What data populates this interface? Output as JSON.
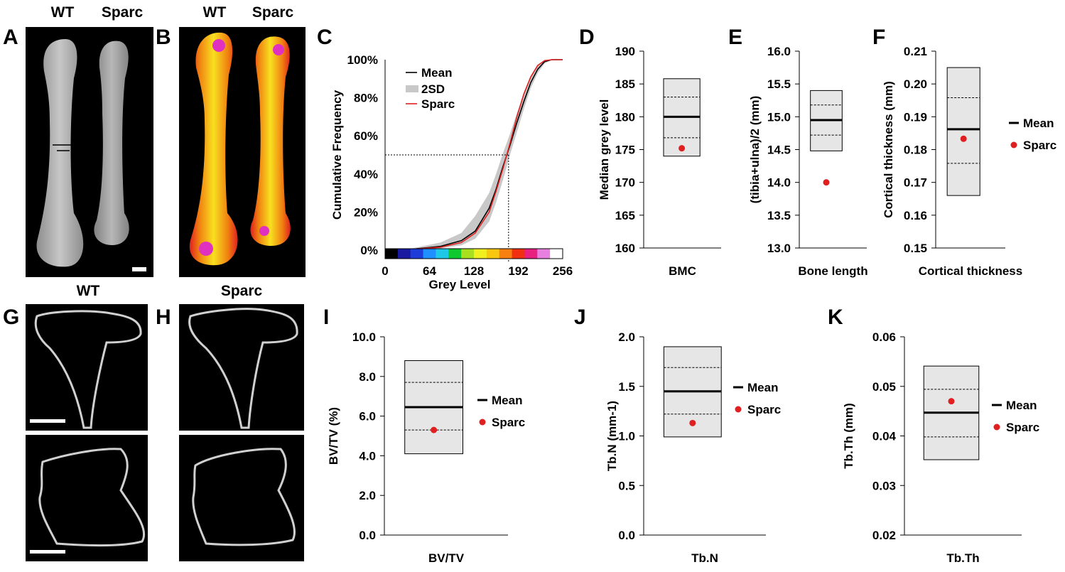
{
  "panel_labels": {
    "A": "A",
    "B": "B",
    "C": "C",
    "D": "D",
    "E": "E",
    "F": "F",
    "G": "G",
    "H": "H",
    "I": "I",
    "J": "J",
    "K": "K"
  },
  "image_titles": {
    "a_wt": "WT",
    "a_sparc": "Sparc",
    "b_wt": "WT",
    "b_sparc": "Sparc",
    "g_wt": "WT",
    "h_sparc": "Sparc"
  },
  "colors": {
    "wt_mean": "#000000",
    "sparc": "#e02020",
    "sd_band": "#c8c8c8",
    "box_fill": "#e6e6e6"
  },
  "chart_data": [
    {
      "id": "C",
      "type": "line",
      "xlabel": "Grey Level",
      "ylabel": "Cumulative Frequency",
      "xlim": [
        0,
        256
      ],
      "ylim": [
        0,
        100
      ],
      "xticks": [
        "0",
        "64",
        "128",
        "192",
        "256"
      ],
      "yticks": [
        "0%",
        "20%",
        "40%",
        "60%",
        "80%",
        "100%"
      ],
      "legend": [
        "Mean",
        "2SD",
        "Sparc"
      ],
      "colorbar": [
        "#000000",
        "#1a1aa0",
        "#1e3cd8",
        "#1e90ff",
        "#20c8e8",
        "#10c830",
        "#a8e020",
        "#f0f020",
        "#f8c810",
        "#f88010",
        "#f03010",
        "#e82080",
        "#e880e0",
        "#ffffff"
      ],
      "series": [
        {
          "name": "Mean",
          "x": [
            0,
            40,
            80,
            110,
            130,
            150,
            160,
            170,
            180,
            190,
            200,
            210,
            220,
            230,
            240,
            256
          ],
          "y": [
            0,
            0.5,
            2,
            5,
            10,
            22,
            32,
            44,
            55,
            67,
            78,
            88,
            95,
            99,
            100,
            100
          ]
        },
        {
          "name": "Sparc",
          "x": [
            0,
            40,
            80,
            110,
            130,
            150,
            160,
            170,
            180,
            190,
            200,
            210,
            220,
            230,
            240,
            256
          ],
          "y": [
            0,
            0.5,
            1.5,
            4,
            9,
            20,
            31,
            43,
            56,
            70,
            82,
            91,
            97,
            99.5,
            100,
            100
          ]
        }
      ],
      "band_2sd": {
        "x": [
          0,
          40,
          80,
          110,
          130,
          150,
          160,
          170,
          180,
          190,
          200,
          210,
          220,
          230,
          240,
          256
        ],
        "lower": [
          0,
          0.2,
          1,
          2.5,
          6,
          15,
          25,
          37,
          50,
          62,
          74,
          85,
          93,
          98,
          100,
          100
        ],
        "upper": [
          0,
          1,
          4,
          9,
          18,
          30,
          40,
          51,
          61,
          72,
          82,
          91,
          97,
          100,
          100,
          100
        ]
      },
      "reference": {
        "x": 178,
        "y": 50
      }
    },
    {
      "id": "D",
      "type": "box",
      "xlabel": "BMC",
      "ylabel": "Median grey level",
      "ylim": [
        160,
        190
      ],
      "yticks": [
        "160",
        "165",
        "170",
        "175",
        "180",
        "185",
        "190"
      ],
      "box": {
        "low": 174,
        "high": 185.8,
        "mean": 180,
        "sd_low": 176.8,
        "sd_high": 183
      },
      "sparc": 175.2,
      "legend": []
    },
    {
      "id": "E",
      "type": "box",
      "xlabel": "Bone length",
      "ylabel": "(tibia+ulna)/2 (mm)",
      "ylim": [
        13.0,
        16.0
      ],
      "yticks": [
        "13.0",
        "13.5",
        "14.0",
        "14.5",
        "15.0",
        "15.5",
        "16.0"
      ],
      "box": {
        "low": 14.48,
        "high": 15.4,
        "mean": 14.95,
        "sd_low": 14.72,
        "sd_high": 15.18
      },
      "sparc": 14.0,
      "legend": []
    },
    {
      "id": "F",
      "type": "box",
      "xlabel": "Cortical thickness",
      "ylabel": "Cortical thickness (mm)",
      "ylim": [
        0.15,
        0.21
      ],
      "yticks": [
        "0.15",
        "0.16",
        "0.17",
        "0.18",
        "0.19",
        "0.20",
        "0.21"
      ],
      "box": {
        "low": 0.166,
        "high": 0.205,
        "mean": 0.1862,
        "sd_low": 0.1758,
        "sd_high": 0.1958
      },
      "sparc": 0.1833,
      "legend": [
        "Mean",
        "Sparc"
      ]
    },
    {
      "id": "I",
      "type": "box",
      "xlabel": "BV/TV",
      "ylabel": "BV/TV (%)",
      "ylim": [
        0,
        10
      ],
      "yticks": [
        "0.0",
        "2.0",
        "4.0",
        "6.0",
        "8.0",
        "10.0"
      ],
      "box": {
        "low": 4.1,
        "high": 8.8,
        "mean": 6.45,
        "sd_low": 5.3,
        "sd_high": 7.7
      },
      "sparc": 5.3,
      "legend": [
        "Mean",
        "Sparc"
      ]
    },
    {
      "id": "J",
      "type": "box",
      "xlabel": "Tb.N",
      "ylabel": "Tb.N (mm-1)",
      "ylim": [
        0,
        2
      ],
      "yticks": [
        "0.0",
        "0.5",
        "1.0",
        "1.5",
        "2.0"
      ],
      "box": {
        "low": 0.99,
        "high": 1.9,
        "mean": 1.45,
        "sd_low": 1.22,
        "sd_high": 1.69
      },
      "sparc": 1.13,
      "legend": [
        "Mean",
        "Sparc"
      ]
    },
    {
      "id": "K",
      "type": "box",
      "xlabel": "Tb.Th",
      "ylabel": "Tb.Th (mm)",
      "ylim": [
        0.02,
        0.06
      ],
      "yticks": [
        "0.02",
        "0.03",
        "0.04",
        "0.05",
        "0.06"
      ],
      "box": {
        "low": 0.0352,
        "high": 0.0541,
        "mean": 0.0447,
        "sd_low": 0.0398,
        "sd_high": 0.0494
      },
      "sparc": 0.047,
      "legend": [
        "Mean",
        "Sparc"
      ]
    }
  ]
}
